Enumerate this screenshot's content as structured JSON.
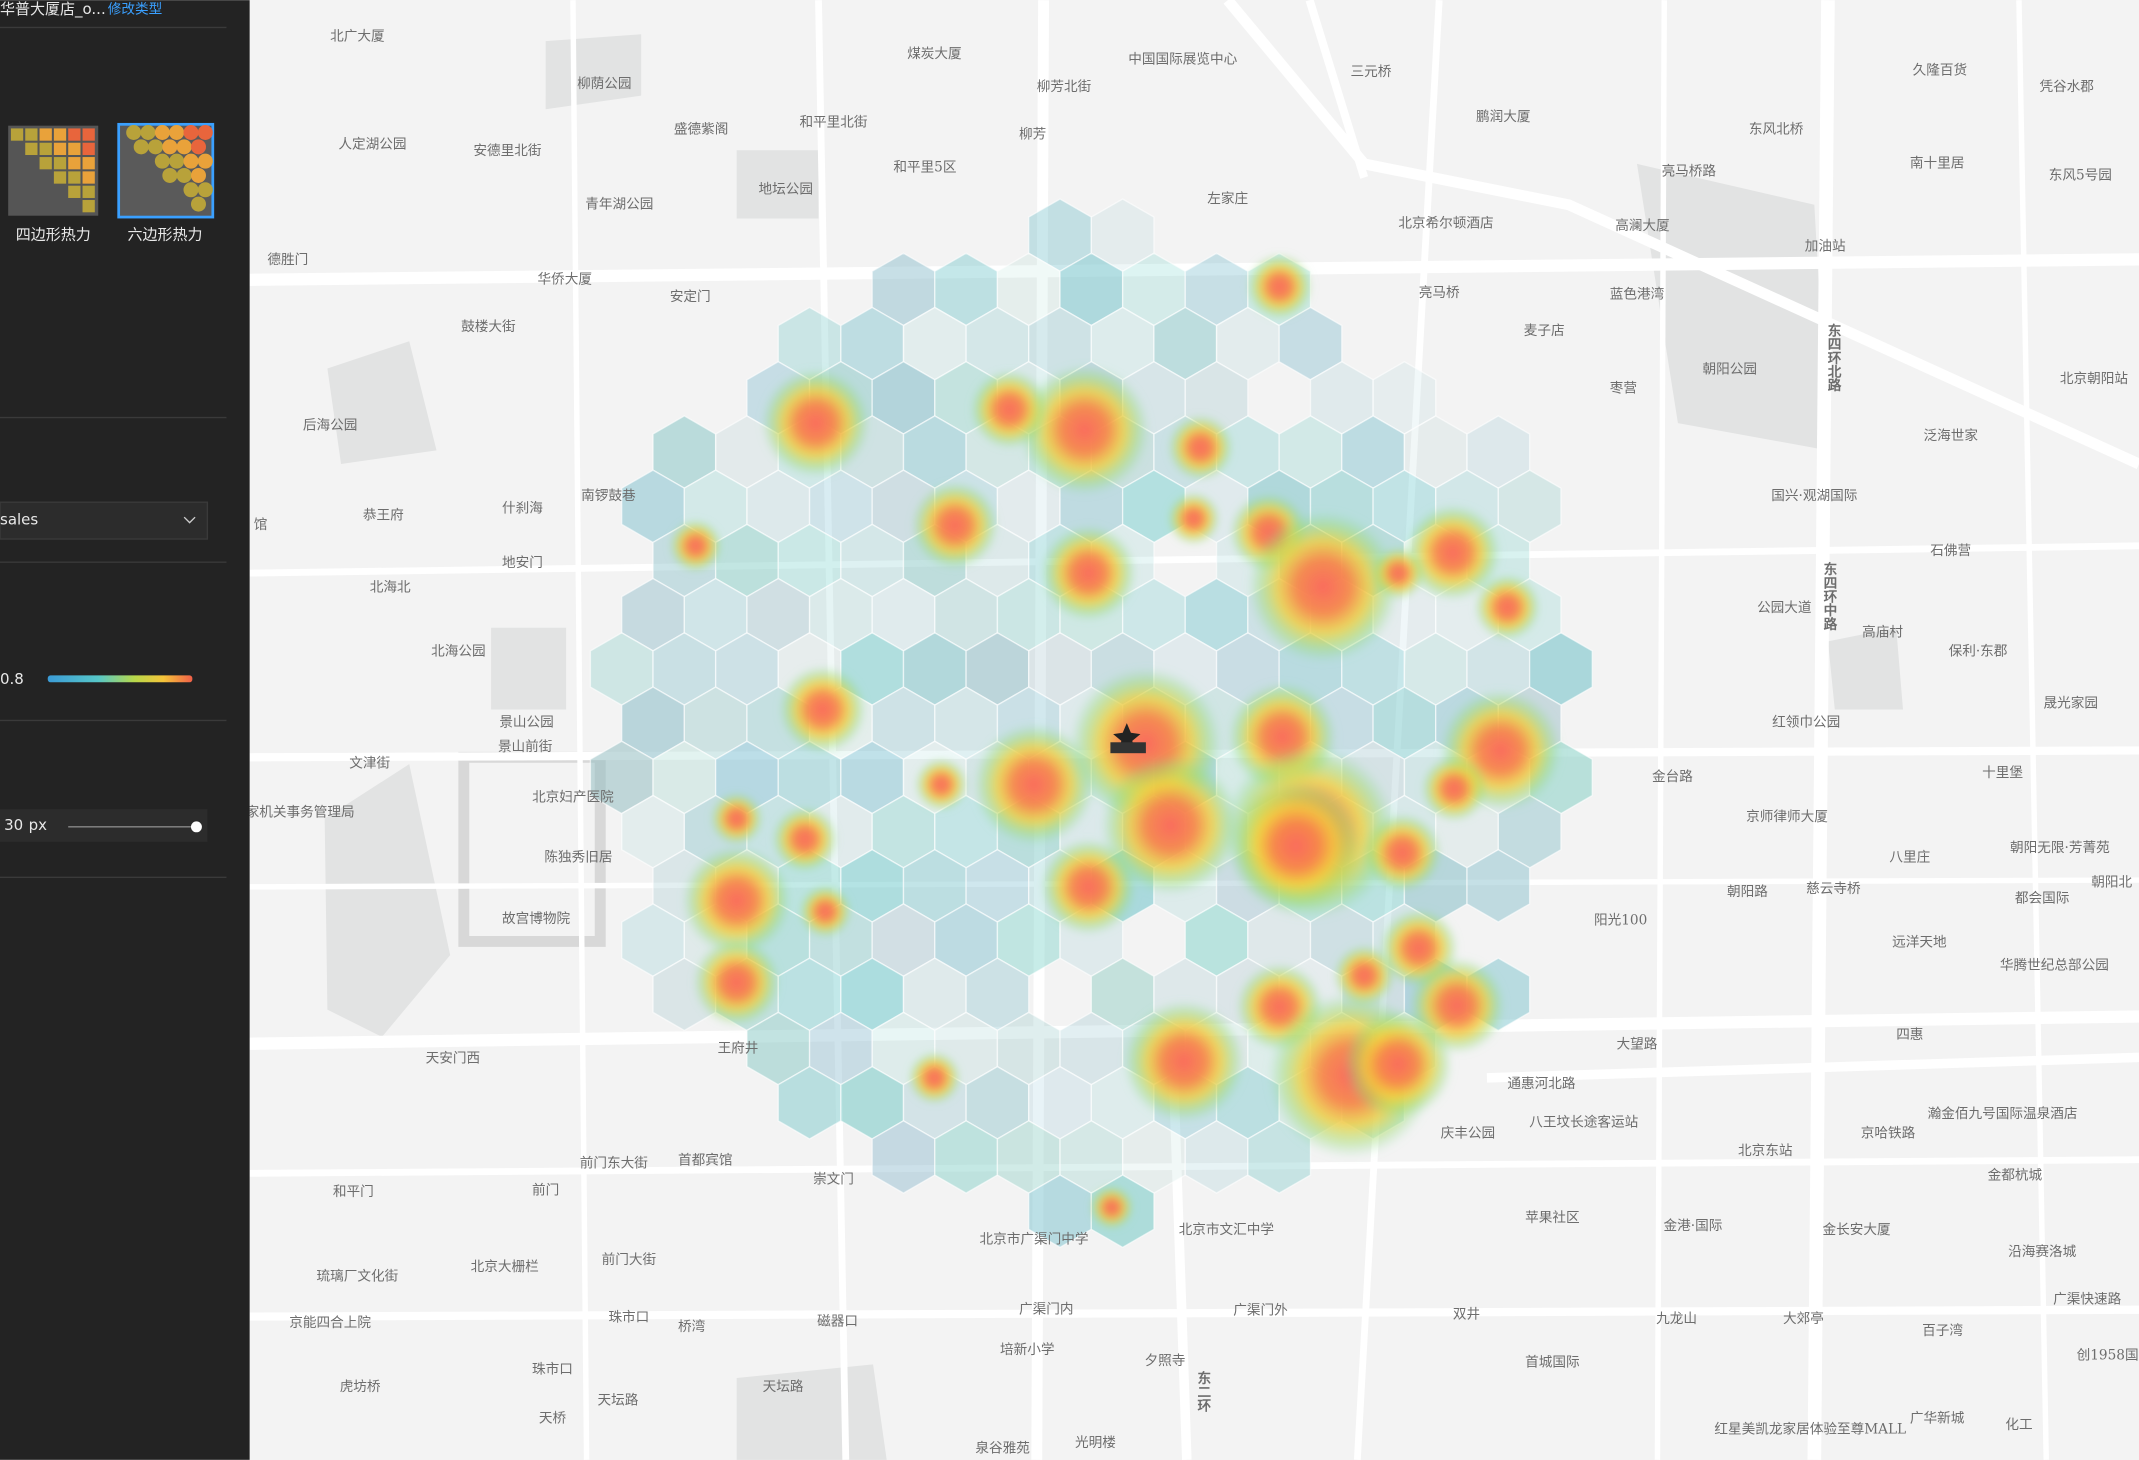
{
  "sidebar": {
    "store_name": "华普大厦店_o...",
    "change_type": "修改类型",
    "styles": [
      "四边形热力",
      "六边形热力"
    ],
    "field": "sales",
    "opacity": "0.8",
    "radius": "30",
    "radius_unit": "px"
  },
  "map_labels": [
    "北广大厦",
    "柳荫公园",
    "煤炭大厦",
    "中国国际展览中心",
    "三元桥",
    "久隆百货",
    "凭谷水郡",
    "柳芳北街",
    "人定湖公园",
    "盛德紫阁",
    "和平里北街",
    "鹏润大厦",
    "安德里北街",
    "柳芳",
    "东风北桥",
    "南十里居",
    "和平里5区",
    "亮马桥路",
    "东风5号园",
    "地坛公园",
    "青年湖公园",
    "左家庄",
    "北京希尔顿酒店",
    "高澜大厦",
    "加油站",
    "德胜门",
    "华侨大厦",
    "安定门",
    "亮马桥",
    "蓝色港湾",
    "鼓楼大街",
    "麦子店",
    "朝阳公园",
    "枣营",
    "北京朝阳站",
    "后海公园",
    "泛海世家",
    "南锣鼓巷",
    "恭王府",
    "什刹海",
    "国兴·观湖国际",
    "地安门",
    "石佛营",
    "北海北",
    "公园大道",
    "高庙村",
    "北海公园",
    "保利·东郡",
    "晟光家园",
    "景山公园",
    "景山前街",
    "文津街",
    "红领巾公园",
    "金台路",
    "十里堡",
    "北京妇产医院",
    "京师律师大厦",
    "国家机关事务管理局",
    "陈独秀旧居",
    "八里庄",
    "朝阳无限·芳菁苑",
    "朝阳路",
    "慈云寺桥",
    "朝阳北",
    "都会国际",
    "故宫博物院",
    "阳光100",
    "远洋天地",
    "华腾世纪总部公园",
    "四惠",
    "大望路",
    "通惠河北路",
    "天安门西",
    "王府井",
    "八王坟长途客运站",
    "瀚金佰九号国际温泉酒店",
    "京哈铁路",
    "前门东大街",
    "首都宾馆",
    "庆丰公园",
    "北京东站",
    "金都杭城",
    "崇文门",
    "和平门",
    "前门",
    "苹果社区",
    "金港·国际",
    "金长安大厦",
    "北京市广渠门中学",
    "北京市文汇中学",
    "琉璃厂文化街",
    "北京大栅栏",
    "前门大街",
    "沿海赛洛城",
    "广渠快速路",
    "京能四合上院",
    "珠市口",
    "桥湾",
    "磁器口",
    "广渠门内",
    "广渠门外",
    "双井",
    "九龙山",
    "大郊亭",
    "百子湾",
    "创1958国",
    "培新小学",
    "夕照寺",
    "首城国际",
    "天坛路",
    "天坛路",
    "虎坊桥",
    "天桥",
    "珠市口",
    "红星美凯龙家居体验至尊MALL",
    "广华新城",
    "化工",
    "泉谷雅苑",
    "光明楼",
    "东四环北路",
    "东四环中路",
    "东二环",
    "馆"
  ]
}
